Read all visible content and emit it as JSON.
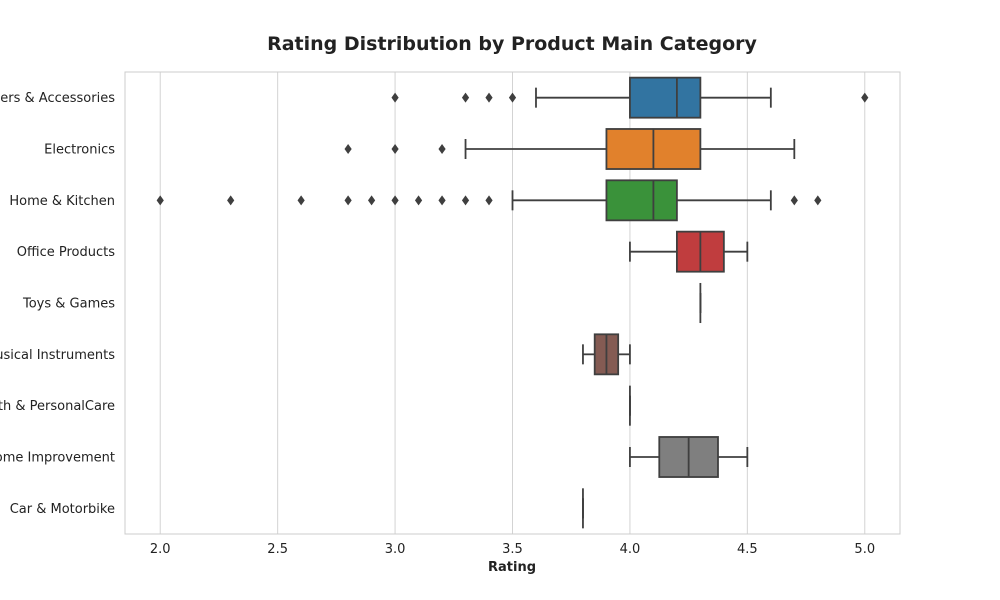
{
  "chart_data": {
    "type": "boxplot",
    "orientation": "horizontal",
    "title": "Rating Distribution by Product Main Category",
    "xlabel": "Rating",
    "ylabel": "",
    "xlim": [
      1.85,
      5.15
    ],
    "xticks": [
      2.0,
      2.5,
      3.0,
      3.5,
      4.0,
      4.5,
      5.0
    ],
    "xtick_labels": [
      "2.0",
      "2.5",
      "3.0",
      "3.5",
      "4.0",
      "4.5",
      "5.0"
    ],
    "grid": true,
    "legend": "none",
    "categories": [
      {
        "label": "Computers & Accessories",
        "color": "#3274a1",
        "whislo": 3.6,
        "q1": 4.0,
        "med": 4.2,
        "q3": 4.3,
        "whishi": 4.6,
        "fliers": [
          3.0,
          3.3,
          3.4,
          3.5,
          5.0
        ]
      },
      {
        "label": "Electronics",
        "color": "#e1812c",
        "whislo": 3.3,
        "q1": 3.9,
        "med": 4.1,
        "q3": 4.3,
        "whishi": 4.7,
        "fliers": [
          2.8,
          3.0,
          3.2
        ]
      },
      {
        "label": "Home & Kitchen",
        "color": "#3a923a",
        "whislo": 3.5,
        "q1": 3.9,
        "med": 4.1,
        "q3": 4.2,
        "whishi": 4.6,
        "fliers": [
          2.0,
          2.3,
          2.6,
          2.8,
          2.9,
          3.0,
          3.1,
          3.2,
          3.3,
          3.4,
          4.7,
          4.8
        ]
      },
      {
        "label": "Office Products",
        "color": "#c03d3e",
        "whislo": 4.0,
        "q1": 4.2,
        "med": 4.3,
        "q3": 4.4,
        "whishi": 4.5,
        "fliers": []
      },
      {
        "label": "Toys & Games",
        "color": "#9372b2",
        "whislo": 4.3,
        "q1": 4.3,
        "med": 4.3,
        "q3": 4.3,
        "whishi": 4.3,
        "fliers": []
      },
      {
        "label": "Musical Instruments",
        "color": "#845b53",
        "whislo": 3.8,
        "q1": 3.85,
        "med": 3.9,
        "q3": 3.95,
        "whishi": 4.0,
        "fliers": []
      },
      {
        "label": "Health & PersonalCare",
        "color": "#d684bd",
        "whislo": 4.0,
        "q1": 4.0,
        "med": 4.0,
        "q3": 4.0,
        "whishi": 4.0,
        "fliers": []
      },
      {
        "label": "Home Improvement",
        "color": "#7f7f7f",
        "whislo": 4.0,
        "q1": 4.125,
        "med": 4.25,
        "q3": 4.375,
        "whishi": 4.5,
        "fliers": []
      },
      {
        "label": "Car & Motorbike",
        "color": "#a9aa35",
        "whislo": 3.8,
        "q1": 3.8,
        "med": 3.8,
        "q3": 3.8,
        "whishi": 3.8,
        "fliers": []
      }
    ]
  }
}
